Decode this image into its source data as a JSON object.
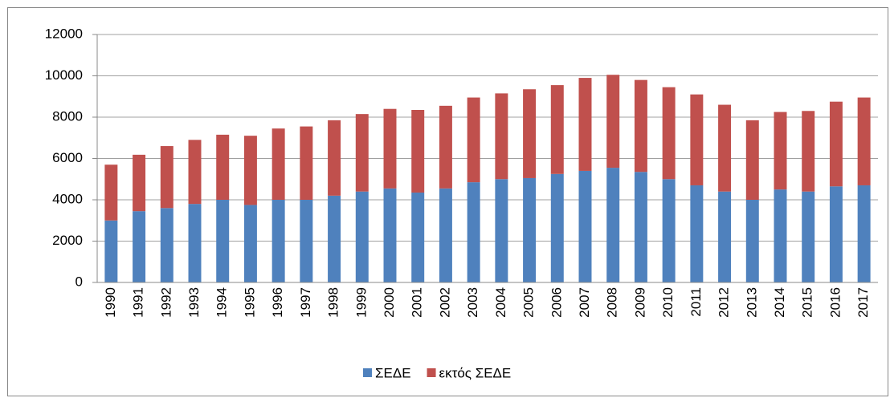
{
  "chart_data": {
    "type": "stacked_bar",
    "categories": [
      "1990",
      "1991",
      "1992",
      "1993",
      "1994",
      "1995",
      "1996",
      "1997",
      "1998",
      "1999",
      "2000",
      "2001",
      "2002",
      "2003",
      "2004",
      "2005",
      "2006",
      "2007",
      "2008",
      "2009",
      "2010",
      "2011",
      "2012",
      "2013",
      "2014",
      "2015",
      "2016",
      "2017"
    ],
    "series": [
      {
        "name": "ΣΕΔΕ",
        "color": "#4f81bd",
        "values": [
          3000,
          3450,
          3600,
          3800,
          4000,
          3750,
          4000,
          4000,
          4200,
          4400,
          4550,
          4350,
          4550,
          4850,
          5000,
          5050,
          5250,
          5400,
          5550,
          5350,
          5000,
          4700,
          4400,
          4000,
          4500,
          4400,
          4650,
          4700
        ]
      },
      {
        "name": "εκτός ΣΕΔΕ",
        "color": "#c0504d",
        "values": [
          2700,
          2730,
          3000,
          3100,
          3150,
          3350,
          3450,
          3550,
          3650,
          3750,
          3850,
          4000,
          4000,
          4100,
          4150,
          4300,
          4300,
          4500,
          4500,
          4450,
          4450,
          4400,
          4200,
          3850,
          3750,
          3900,
          4100,
          4250
        ]
      }
    ],
    "ylim": [
      0,
      12000
    ],
    "yticks": [
      0,
      2000,
      4000,
      6000,
      8000,
      10000,
      12000
    ],
    "grid": true,
    "legend": "bottom"
  }
}
